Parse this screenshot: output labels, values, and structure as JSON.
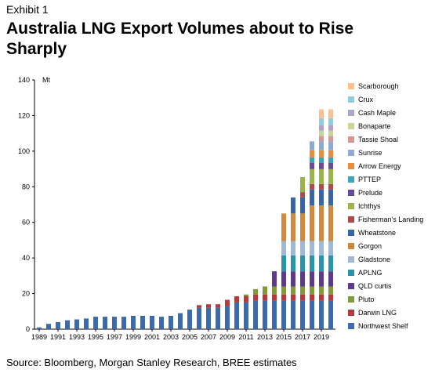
{
  "header": {
    "exhibit": "Exhibit 1",
    "title": "Australia LNG Export Volumes about to Rise Sharply"
  },
  "footer": {
    "source": "Source: Bloomberg, Morgan Stanley Research, BREE estimates"
  },
  "chart_data": {
    "type": "bar",
    "stacked": true,
    "ylabel": "Mt",
    "ylim": [
      0,
      140
    ],
    "yticks": [
      0,
      20,
      40,
      60,
      80,
      100,
      120,
      140
    ],
    "xtick_labels": [
      "1989",
      "1991",
      "1993",
      "1995",
      "1997",
      "1999",
      "2001",
      "2003",
      "2005",
      "2007",
      "2009",
      "2011",
      "2013",
      "2015",
      "2017",
      "2019"
    ],
    "categories": [
      "1989",
      "1990",
      "1991",
      "1992",
      "1993",
      "1994",
      "1995",
      "1996",
      "1997",
      "1998",
      "1999",
      "2000",
      "2001",
      "2002",
      "2003",
      "2004",
      "2005",
      "2006",
      "2007",
      "2008",
      "2009",
      "2010",
      "2011",
      "2012",
      "2013",
      "2014",
      "2015",
      "2016",
      "2017",
      "2018",
      "2019",
      "2020"
    ],
    "grid": false,
    "legend_position": "right",
    "series": [
      {
        "name": "Northwest Shelf",
        "color": "#3c6aad",
        "values": [
          1,
          3,
          4,
          5,
          5.5,
          6,
          7,
          7,
          7,
          7,
          7.5,
          7.5,
          7.5,
          7,
          7.5,
          9,
          11,
          12,
          12,
          12,
          13,
          15,
          15,
          16,
          16,
          16,
          16,
          16,
          16,
          16,
          16,
          16
        ]
      },
      {
        "name": "Darwin LNG",
        "color": "#b63a3a",
        "values": [
          0,
          0,
          0,
          0,
          0,
          0,
          0,
          0,
          0,
          0,
          0,
          0,
          0,
          0,
          0,
          0,
          0,
          1.5,
          2,
          2,
          3.5,
          3.5,
          3.5,
          3.5,
          3.5,
          3.5,
          3.5,
          3.5,
          3.5,
          3.5,
          3.5,
          3.5
        ]
      },
      {
        "name": "Pluto",
        "color": "#7f9a36",
        "values": [
          0,
          0,
          0,
          0,
          0,
          0,
          0,
          0,
          0,
          0,
          0,
          0,
          0,
          0,
          0,
          0,
          0,
          0,
          0,
          0,
          0,
          0,
          1,
          3,
          4.5,
          4.5,
          4.5,
          4.5,
          4.5,
          4.5,
          4.5,
          4.5
        ]
      },
      {
        "name": "QLD curtis",
        "color": "#5d3a8c",
        "values": [
          0,
          0,
          0,
          0,
          0,
          0,
          0,
          0,
          0,
          0,
          0,
          0,
          0,
          0,
          0,
          0,
          0,
          0,
          0,
          0,
          0,
          0,
          0,
          0,
          0,
          8.5,
          8.5,
          8.5,
          8.5,
          8.5,
          8.5,
          8.5
        ]
      },
      {
        "name": "APLNG",
        "color": "#2a95a8",
        "values": [
          0,
          0,
          0,
          0,
          0,
          0,
          0,
          0,
          0,
          0,
          0,
          0,
          0,
          0,
          0,
          0,
          0,
          0,
          0,
          0,
          0,
          0,
          0,
          0,
          0,
          0,
          9,
          9,
          9,
          9,
          9,
          9
        ]
      },
      {
        "name": "Gladstone",
        "color": "#9fb9d6",
        "values": [
          0,
          0,
          0,
          0,
          0,
          0,
          0,
          0,
          0,
          0,
          0,
          0,
          0,
          0,
          0,
          0,
          0,
          0,
          0,
          0,
          0,
          0,
          0,
          0,
          0,
          0,
          8,
          8,
          8,
          8,
          8,
          8
        ]
      },
      {
        "name": "Gorgon",
        "color": "#d08a40",
        "values": [
          0,
          0,
          0,
          0,
          0,
          0,
          0,
          0,
          0,
          0,
          0,
          0,
          0,
          0,
          0,
          0,
          0,
          0,
          0,
          0,
          0,
          0,
          0,
          0,
          0,
          0,
          15.5,
          15.5,
          15.5,
          20,
          20,
          20
        ]
      },
      {
        "name": "Wheatstone",
        "color": "#3a64a8",
        "values": [
          0,
          0,
          0,
          0,
          0,
          0,
          0,
          0,
          0,
          0,
          0,
          0,
          0,
          0,
          0,
          0,
          0,
          0,
          0,
          0,
          0,
          0,
          0,
          0,
          0,
          0,
          0,
          9,
          9,
          9,
          9,
          9
        ]
      },
      {
        "name": "Fisherman's Landing",
        "color": "#b04a4a",
        "values": [
          0,
          0,
          0,
          0,
          0,
          0,
          0,
          0,
          0,
          0,
          0,
          0,
          0,
          0,
          0,
          0,
          0,
          0,
          0,
          0,
          0,
          0,
          0,
          0,
          0,
          0,
          0,
          0,
          3,
          3,
          3,
          3
        ]
      },
      {
        "name": "Ichthys",
        "color": "#9bb54e",
        "values": [
          0,
          0,
          0,
          0,
          0,
          0,
          0,
          0,
          0,
          0,
          0,
          0,
          0,
          0,
          0,
          0,
          0,
          0,
          0,
          0,
          0,
          0,
          0,
          0,
          0,
          0,
          0,
          0,
          8.4,
          8.4,
          8.4,
          8.4
        ]
      },
      {
        "name": "Prelude",
        "color": "#6a4b9a",
        "values": [
          0,
          0,
          0,
          0,
          0,
          0,
          0,
          0,
          0,
          0,
          0,
          0,
          0,
          0,
          0,
          0,
          0,
          0,
          0,
          0,
          0,
          0,
          0,
          0,
          0,
          0,
          0,
          0,
          0,
          3.6,
          3.6,
          3.6
        ]
      },
      {
        "name": "PTTEP",
        "color": "#3ba5b5",
        "values": [
          0,
          0,
          0,
          0,
          0,
          0,
          0,
          0,
          0,
          0,
          0,
          0,
          0,
          0,
          0,
          0,
          0,
          0,
          0,
          0,
          0,
          0,
          0,
          0,
          0,
          0,
          0,
          0,
          0,
          3,
          3,
          3
        ]
      },
      {
        "name": "Arrow Energy",
        "color": "#ec8c3a",
        "values": [
          0,
          0,
          0,
          0,
          0,
          0,
          0,
          0,
          0,
          0,
          0,
          0,
          0,
          0,
          0,
          0,
          0,
          0,
          0,
          0,
          0,
          0,
          0,
          0,
          0,
          0,
          0,
          0,
          0,
          4,
          4,
          4
        ]
      },
      {
        "name": "Sunrise",
        "color": "#8ea9d4",
        "values": [
          0,
          0,
          0,
          0,
          0,
          0,
          0,
          0,
          0,
          0,
          0,
          0,
          0,
          0,
          0,
          0,
          0,
          0,
          0,
          0,
          0,
          0,
          0,
          0,
          0,
          0,
          0,
          0,
          0,
          5,
          5,
          5
        ]
      },
      {
        "name": "Tassie Shoal",
        "color": "#d99594",
        "values": [
          0,
          0,
          0,
          0,
          0,
          0,
          0,
          0,
          0,
          0,
          0,
          0,
          0,
          0,
          0,
          0,
          0,
          0,
          0,
          0,
          0,
          0,
          0,
          0,
          0,
          0,
          0,
          0,
          0,
          0,
          3,
          3
        ]
      },
      {
        "name": "Bonaparte",
        "color": "#c4d79b",
        "values": [
          0,
          0,
          0,
          0,
          0,
          0,
          0,
          0,
          0,
          0,
          0,
          0,
          0,
          0,
          0,
          0,
          0,
          0,
          0,
          0,
          0,
          0,
          0,
          0,
          0,
          0,
          0,
          0,
          0,
          0,
          3,
          3
        ]
      },
      {
        "name": "Cash Maple",
        "color": "#b2a2c7",
        "values": [
          0,
          0,
          0,
          0,
          0,
          0,
          0,
          0,
          0,
          0,
          0,
          0,
          0,
          0,
          0,
          0,
          0,
          0,
          0,
          0,
          0,
          0,
          0,
          0,
          0,
          0,
          0,
          0,
          0,
          0,
          3,
          3
        ]
      },
      {
        "name": "Crux",
        "color": "#92cddc",
        "values": [
          0,
          0,
          0,
          0,
          0,
          0,
          0,
          0,
          0,
          0,
          0,
          0,
          0,
          0,
          0,
          0,
          0,
          0,
          0,
          0,
          0,
          0,
          0,
          0,
          0,
          0,
          0,
          0,
          0,
          0,
          4,
          4
        ]
      },
      {
        "name": "Scarborough",
        "color": "#fac090",
        "values": [
          0,
          0,
          0,
          0,
          0,
          0,
          0,
          0,
          0,
          0,
          0,
          0,
          0,
          0,
          0,
          0,
          0,
          0,
          0,
          0,
          0,
          0,
          0,
          0,
          0,
          0,
          0,
          0,
          0,
          0,
          5,
          5
        ]
      }
    ]
  }
}
